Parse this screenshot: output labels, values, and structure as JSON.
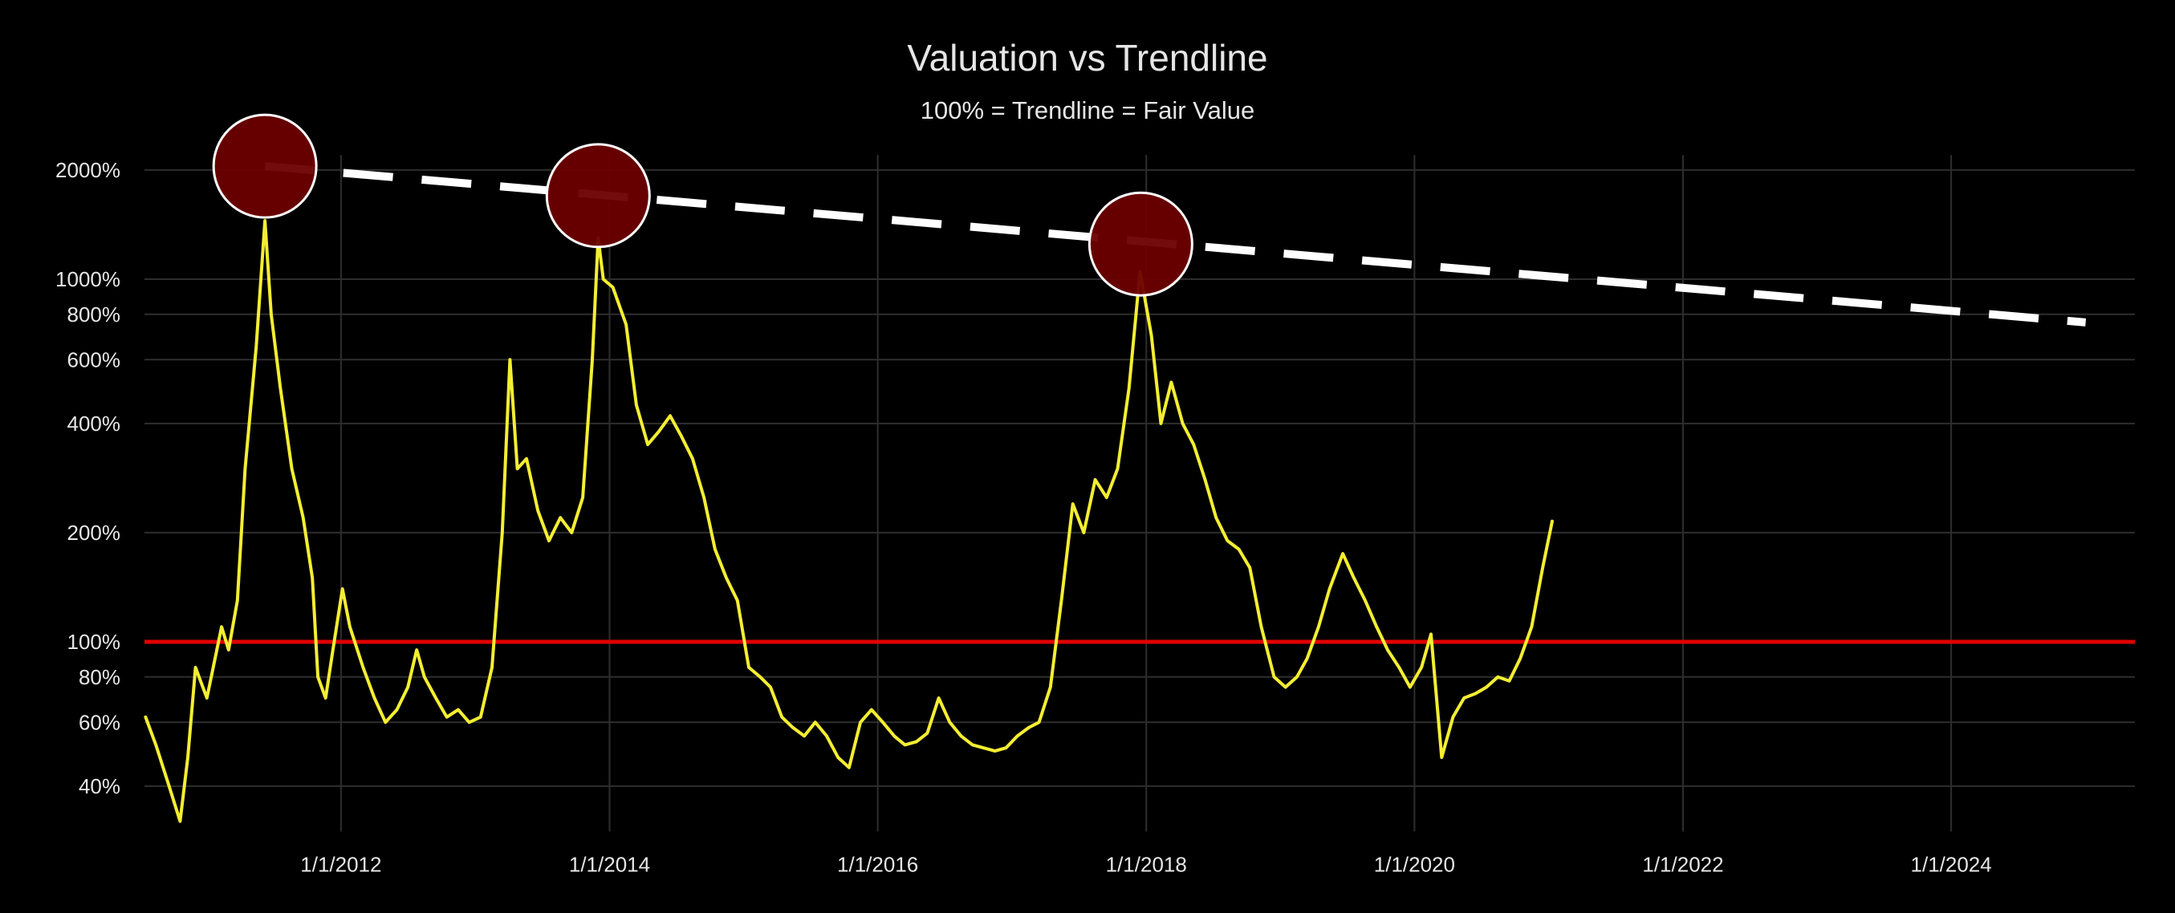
{
  "chart_data": {
    "type": "line",
    "title": "Valuation vs Trendline",
    "subtitle": "100% = Trendline = Fair Value",
    "y_scale": "log",
    "y_unit": "%",
    "y_ticks": [
      40,
      60,
      80,
      100,
      200,
      400,
      600,
      800,
      1000,
      2000
    ],
    "y_tick_labels": [
      "40%",
      "60%",
      "80%",
      "100%",
      "200%",
      "400%",
      "600%",
      "800%",
      "1000%",
      "2000%"
    ],
    "ylim": [
      30,
      2200
    ],
    "x_ticks": [
      "2012-01-01",
      "2014-01-01",
      "2016-01-01",
      "2018-01-01",
      "2020-01-01",
      "2022-01-01",
      "2024-01-01"
    ],
    "x_tick_labels": [
      "1/1/2012",
      "1/1/2014",
      "1/1/2016",
      "1/1/2018",
      "1/1/2020",
      "1/1/2022",
      "1/1/2024"
    ],
    "xlim": [
      "2010-07-15",
      "2025-05-15"
    ],
    "grid": true,
    "colors": {
      "background": "#000000",
      "grid": "#2e2e2e",
      "series": "#f4ee32",
      "fair_value_line": "#e00000",
      "peak_trendline": "#ffffff",
      "peak_marker_fill": "#6b0000",
      "peak_marker_stroke": "#ffffff",
      "text": "#e6e6e6"
    },
    "series": [
      {
        "values_pct": [
          [
            "2010-07-18",
            62
          ],
          [
            "2010-08-15",
            52
          ],
          [
            "2010-09-20",
            40
          ],
          [
            "2010-10-20",
            32
          ],
          [
            "2010-11-10",
            48
          ],
          [
            "2010-12-01",
            85
          ],
          [
            "2011-01-01",
            70
          ],
          [
            "2011-02-10",
            110
          ],
          [
            "2011-03-01",
            95
          ],
          [
            "2011-03-25",
            130
          ],
          [
            "2011-04-15",
            300
          ],
          [
            "2011-05-15",
            650
          ],
          [
            "2011-06-08",
            1450
          ],
          [
            "2011-06-25",
            800
          ],
          [
            "2011-07-20",
            500
          ],
          [
            "2011-08-20",
            300
          ],
          [
            "2011-09-20",
            220
          ],
          [
            "2011-10-15",
            150
          ],
          [
            "2011-10-30",
            80
          ],
          [
            "2011-11-20",
            70
          ],
          [
            "2011-12-10",
            95
          ],
          [
            "2012-01-05",
            140
          ],
          [
            "2012-01-25",
            110
          ],
          [
            "2012-03-01",
            85
          ],
          [
            "2012-04-01",
            70
          ],
          [
            "2012-05-01",
            60
          ],
          [
            "2012-06-01",
            65
          ],
          [
            "2012-07-01",
            75
          ],
          [
            "2012-07-25",
            95
          ],
          [
            "2012-08-15",
            80
          ],
          [
            "2012-09-15",
            70
          ],
          [
            "2012-10-15",
            62
          ],
          [
            "2012-11-15",
            65
          ],
          [
            "2012-12-15",
            60
          ],
          [
            "2013-01-15",
            62
          ],
          [
            "2013-02-15",
            85
          ],
          [
            "2013-03-15",
            200
          ],
          [
            "2013-04-05",
            600
          ],
          [
            "2013-04-25",
            300
          ],
          [
            "2013-05-20",
            320
          ],
          [
            "2013-06-20",
            230
          ],
          [
            "2013-07-20",
            190
          ],
          [
            "2013-08-20",
            220
          ],
          [
            "2013-09-20",
            200
          ],
          [
            "2013-10-20",
            250
          ],
          [
            "2013-11-15",
            600
          ],
          [
            "2013-12-01",
            1300
          ],
          [
            "2013-12-15",
            1000
          ],
          [
            "2014-01-10",
            950
          ],
          [
            "2014-02-15",
            750
          ],
          [
            "2014-03-15",
            450
          ],
          [
            "2014-04-15",
            350
          ],
          [
            "2014-05-15",
            380
          ],
          [
            "2014-06-15",
            420
          ],
          [
            "2014-07-15",
            370
          ],
          [
            "2014-08-15",
            320
          ],
          [
            "2014-09-15",
            250
          ],
          [
            "2014-10-15",
            180
          ],
          [
            "2014-11-15",
            150
          ],
          [
            "2014-12-15",
            130
          ],
          [
            "2015-01-15",
            85
          ],
          [
            "2015-02-15",
            80
          ],
          [
            "2015-03-15",
            75
          ],
          [
            "2015-04-15",
            62
          ],
          [
            "2015-05-15",
            58
          ],
          [
            "2015-06-15",
            55
          ],
          [
            "2015-07-15",
            60
          ],
          [
            "2015-08-15",
            55
          ],
          [
            "2015-09-15",
            48
          ],
          [
            "2015-10-15",
            45
          ],
          [
            "2015-11-15",
            60
          ],
          [
            "2015-12-15",
            65
          ],
          [
            "2016-01-15",
            60
          ],
          [
            "2016-02-15",
            55
          ],
          [
            "2016-03-15",
            52
          ],
          [
            "2016-04-15",
            53
          ],
          [
            "2016-05-15",
            56
          ],
          [
            "2016-06-15",
            70
          ],
          [
            "2016-07-15",
            60
          ],
          [
            "2016-08-15",
            55
          ],
          [
            "2016-09-15",
            52
          ],
          [
            "2016-10-15",
            51
          ],
          [
            "2016-11-15",
            50
          ],
          [
            "2016-12-15",
            51
          ],
          [
            "2017-01-15",
            55
          ],
          [
            "2017-02-15",
            58
          ],
          [
            "2017-03-15",
            60
          ],
          [
            "2017-04-15",
            75
          ],
          [
            "2017-05-15",
            130
          ],
          [
            "2017-06-15",
            240
          ],
          [
            "2017-07-15",
            200
          ],
          [
            "2017-08-15",
            280
          ],
          [
            "2017-09-15",
            250
          ],
          [
            "2017-10-15",
            300
          ],
          [
            "2017-11-15",
            500
          ],
          [
            "2017-12-15",
            1050
          ],
          [
            "2018-01-15",
            700
          ],
          [
            "2018-02-10",
            400
          ],
          [
            "2018-03-10",
            520
          ],
          [
            "2018-04-10",
            400
          ],
          [
            "2018-05-10",
            350
          ],
          [
            "2018-06-10",
            280
          ],
          [
            "2018-07-10",
            220
          ],
          [
            "2018-08-10",
            190
          ],
          [
            "2018-09-10",
            180
          ],
          [
            "2018-10-10",
            160
          ],
          [
            "2018-11-10",
            110
          ],
          [
            "2018-12-15",
            80
          ],
          [
            "2019-01-15",
            75
          ],
          [
            "2019-02-15",
            80
          ],
          [
            "2019-03-15",
            90
          ],
          [
            "2019-04-15",
            110
          ],
          [
            "2019-05-15",
            140
          ],
          [
            "2019-06-20",
            175
          ],
          [
            "2019-07-20",
            150
          ],
          [
            "2019-08-20",
            130
          ],
          [
            "2019-09-20",
            110
          ],
          [
            "2019-10-20",
            95
          ],
          [
            "2019-11-20",
            85
          ],
          [
            "2019-12-20",
            75
          ],
          [
            "2020-01-20",
            85
          ],
          [
            "2020-02-15",
            105
          ],
          [
            "2020-03-15",
            48
          ],
          [
            "2020-04-15",
            62
          ],
          [
            "2020-05-15",
            70
          ],
          [
            "2020-06-15",
            72
          ],
          [
            "2020-07-15",
            75
          ],
          [
            "2020-08-15",
            80
          ],
          [
            "2020-09-15",
            78
          ],
          [
            "2020-10-15",
            90
          ],
          [
            "2020-11-15",
            110
          ],
          [
            "2020-12-15",
            160
          ],
          [
            "2021-01-10",
            215
          ]
        ]
      }
    ],
    "reference_lines": [
      {
        "value_pct": 100
      }
    ],
    "peak_trendline": {
      "style": "dashed",
      "points": [
        [
          "2011-06-08",
          2050
        ],
        [
          "2025-01-01",
          760
        ]
      ]
    },
    "peak_markers": [
      {
        "date": "2011-06-08",
        "value_pct": 2050
      },
      {
        "date": "2013-12-01",
        "value_pct": 1700
      },
      {
        "date": "2017-12-17",
        "value_pct": 1250
      }
    ]
  }
}
